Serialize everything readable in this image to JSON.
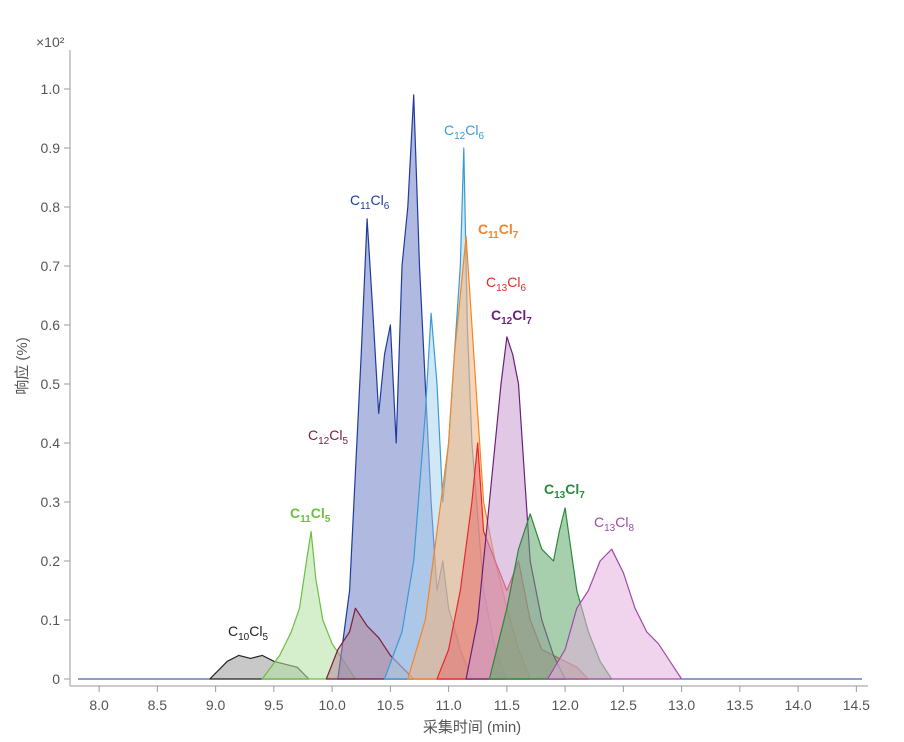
{
  "chart_data": {
    "type": "area",
    "xlabel": "采集时间 (min)",
    "ylabel": "响应 (%)",
    "y_multiplier": "×10²",
    "xlim": [
      7.75,
      14.6
    ],
    "ylim": [
      0,
      1.0
    ],
    "x_ticks": [
      "8.0",
      "8.5",
      "9.0",
      "9.5",
      "10.0",
      "10.5",
      "11.0",
      "11.5",
      "12.0",
      "12.5",
      "13.0",
      "13.5",
      "14.0",
      "14.5"
    ],
    "y_ticks": [
      "0",
      "0.1",
      "0.2",
      "0.3",
      "0.4",
      "0.5",
      "0.6",
      "0.7",
      "0.8",
      "0.9",
      "1.0"
    ],
    "grid": false,
    "series": [
      {
        "name": "C10Cl5",
        "label_base": "C",
        "label_sub1": "10",
        "label_mid": "Cl",
        "label_sub2": "5",
        "bold": false,
        "color": "#222222",
        "fill": "#9a9a9a",
        "x": [
          8.95,
          9.1,
          9.2,
          9.3,
          9.4,
          9.5,
          9.6,
          9.7,
          9.8
        ],
        "y": [
          0.0,
          0.03,
          0.04,
          0.035,
          0.04,
          0.03,
          0.025,
          0.02,
          0.0
        ]
      },
      {
        "name": "C11Cl5",
        "label_base": "C",
        "label_sub1": "11",
        "label_mid": "Cl",
        "label_sub2": "5",
        "bold": true,
        "color": "#6cbf3f",
        "fill": "#b3e0a0",
        "x": [
          9.4,
          9.55,
          9.65,
          9.72,
          9.78,
          9.82,
          9.86,
          9.92,
          10.0,
          10.1,
          10.2
        ],
        "y": [
          0.0,
          0.04,
          0.08,
          0.12,
          0.2,
          0.25,
          0.17,
          0.1,
          0.06,
          0.03,
          0.0
        ]
      },
      {
        "name": "C11Cl6",
        "label_base": "C",
        "label_sub1": "11",
        "label_mid": "Cl",
        "label_sub2": "6",
        "bold": false,
        "color": "#1f3b9e",
        "fill": "#6f7fc4",
        "x": [
          10.05,
          10.15,
          10.2,
          10.25,
          10.3,
          10.35,
          10.4,
          10.45,
          10.5,
          10.55,
          10.6,
          10.65,
          10.7,
          10.75,
          10.8,
          10.85,
          10.9,
          10.95,
          11.0,
          11.1,
          11.2
        ],
        "y": [
          0.0,
          0.15,
          0.35,
          0.55,
          0.78,
          0.62,
          0.45,
          0.55,
          0.6,
          0.4,
          0.7,
          0.8,
          0.99,
          0.7,
          0.5,
          0.3,
          0.15,
          0.2,
          0.12,
          0.05,
          0.0
        ]
      },
      {
        "name": "C12Cl5",
        "label_base": "C",
        "label_sub1": "12",
        "label_mid": "Cl",
        "label_sub2": "5",
        "bold": false,
        "color": "#7a1f3d",
        "fill": "#b58a9a",
        "x": [
          9.95,
          10.05,
          10.15,
          10.2,
          10.3,
          10.4,
          10.5,
          10.6,
          10.7
        ],
        "y": [
          0.0,
          0.05,
          0.08,
          0.12,
          0.09,
          0.07,
          0.04,
          0.02,
          0.0
        ]
      },
      {
        "name": "C12Cl6",
        "label_base": "C",
        "label_sub1": "12",
        "label_mid": "Cl",
        "label_sub2": "6",
        "bold": false,
        "color": "#3a9ad6",
        "fill": "#a9d4ef",
        "x": [
          10.45,
          10.6,
          10.7,
          10.8,
          10.85,
          10.9,
          10.95,
          11.0,
          11.05,
          11.1,
          11.13,
          11.16,
          11.2,
          11.3,
          11.4,
          11.5
        ],
        "y": [
          0.0,
          0.08,
          0.2,
          0.45,
          0.62,
          0.5,
          0.3,
          0.4,
          0.55,
          0.7,
          0.9,
          0.6,
          0.4,
          0.15,
          0.05,
          0.0
        ]
      },
      {
        "name": "C11Cl7",
        "label_base": "C",
        "label_sub1": "11",
        "label_mid": "Cl",
        "label_sub2": "7",
        "bold": true,
        "color": "#f0862a",
        "fill": "#f5b27a",
        "x": [
          10.65,
          10.8,
          10.9,
          11.0,
          11.05,
          11.1,
          11.15,
          11.2,
          11.25,
          11.3,
          11.4,
          11.5,
          11.6,
          11.7
        ],
        "y": [
          0.0,
          0.1,
          0.25,
          0.4,
          0.55,
          0.65,
          0.75,
          0.6,
          0.45,
          0.3,
          0.2,
          0.12,
          0.05,
          0.0
        ]
      },
      {
        "name": "C13Cl6",
        "label_base": "C",
        "label_sub1": "13",
        "label_mid": "Cl",
        "label_sub2": "6",
        "bold": false,
        "color": "#e8282b",
        "fill": "#e87070",
        "x": [
          10.9,
          11.0,
          11.1,
          11.2,
          11.25,
          11.3,
          11.4,
          11.5,
          11.6,
          11.7,
          11.8,
          11.9,
          12.0,
          12.1,
          12.2
        ],
        "y": [
          0.0,
          0.05,
          0.15,
          0.3,
          0.4,
          0.25,
          0.2,
          0.15,
          0.2,
          0.1,
          0.05,
          0.04,
          0.03,
          0.02,
          0.0
        ]
      },
      {
        "name": "C12Cl7",
        "label_base": "C",
        "label_sub1": "12",
        "label_mid": "Cl",
        "label_sub2": "7",
        "bold": true,
        "color": "#6b1f7a",
        "fill": "#c89bd0",
        "x": [
          11.15,
          11.25,
          11.35,
          11.45,
          11.5,
          11.55,
          11.6,
          11.65,
          11.7,
          11.8,
          11.9,
          12.0
        ],
        "y": [
          0.0,
          0.1,
          0.3,
          0.5,
          0.58,
          0.55,
          0.5,
          0.35,
          0.2,
          0.1,
          0.04,
          0.0
        ]
      },
      {
        "name": "C13Cl7",
        "label_base": "C",
        "label_sub1": "13",
        "label_mid": "Cl",
        "label_sub2": "7",
        "bold": true,
        "color": "#2a8a3a",
        "fill": "#5ea86a",
        "x": [
          11.35,
          11.5,
          11.6,
          11.7,
          11.8,
          11.9,
          11.95,
          12.0,
          12.05,
          12.1,
          12.2,
          12.3,
          12.4
        ],
        "y": [
          0.0,
          0.12,
          0.22,
          0.28,
          0.22,
          0.2,
          0.25,
          0.29,
          0.22,
          0.15,
          0.08,
          0.03,
          0.0
        ]
      },
      {
        "name": "C13Cl8",
        "label_base": "C",
        "label_sub1": "13",
        "label_mid": "Cl",
        "label_sub2": "8",
        "bold": false,
        "color": "#a04aa8",
        "fill": "#e4b1df",
        "x": [
          11.85,
          12.0,
          12.1,
          12.2,
          12.3,
          12.4,
          12.5,
          12.6,
          12.7,
          12.8,
          12.9,
          13.0
        ],
        "y": [
          0.0,
          0.05,
          0.12,
          0.15,
          0.2,
          0.22,
          0.18,
          0.12,
          0.08,
          0.06,
          0.03,
          0.0
        ]
      }
    ]
  }
}
